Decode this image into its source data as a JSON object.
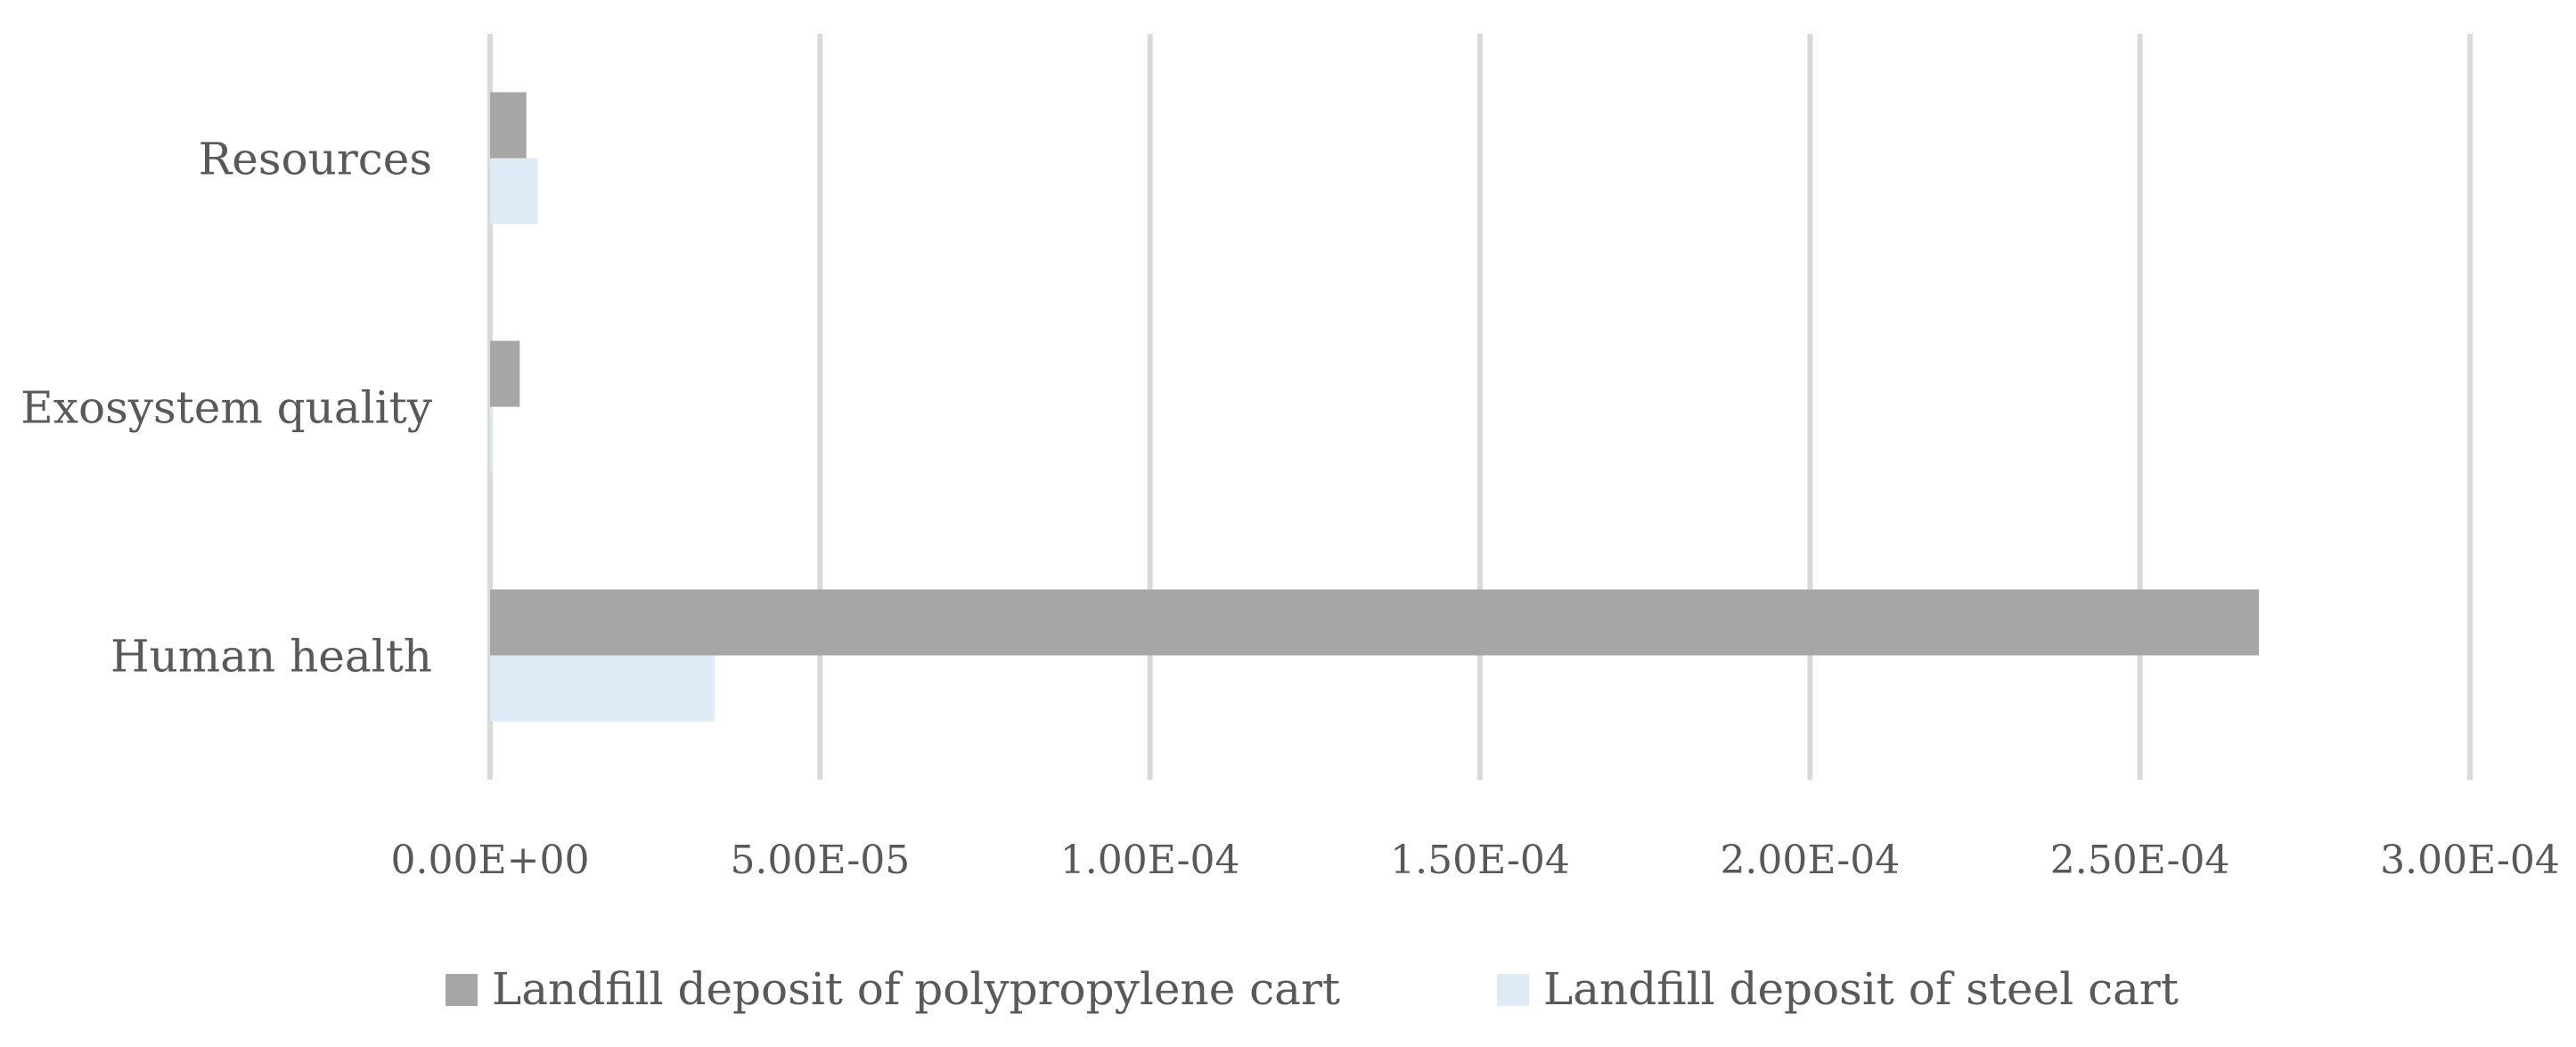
{
  "chart_data": {
    "type": "bar",
    "orientation": "horizontal",
    "categories": [
      "Resources",
      "Exosystem quality",
      "Human health"
    ],
    "series": [
      {
        "name": "Landfill deposit of polypropylene cart",
        "color": "#a6a6a6",
        "values": [
          5.5e-06,
          4.5e-06,
          0.000268
        ]
      },
      {
        "name": "Landfill deposit of steel cart",
        "color": "#deebf7",
        "values": [
          7.2e-06,
          3e-07,
          3.4e-05
        ]
      }
    ],
    "x_ticks": [
      "0.00E+00",
      "5.00E-05",
      "1.00E-04",
      "1.50E-04",
      "2.00E-04",
      "2.50E-04",
      "3.00E-04"
    ],
    "xlim": [
      0,
      0.0003
    ],
    "grid": true,
    "legend_position": "bottom"
  }
}
